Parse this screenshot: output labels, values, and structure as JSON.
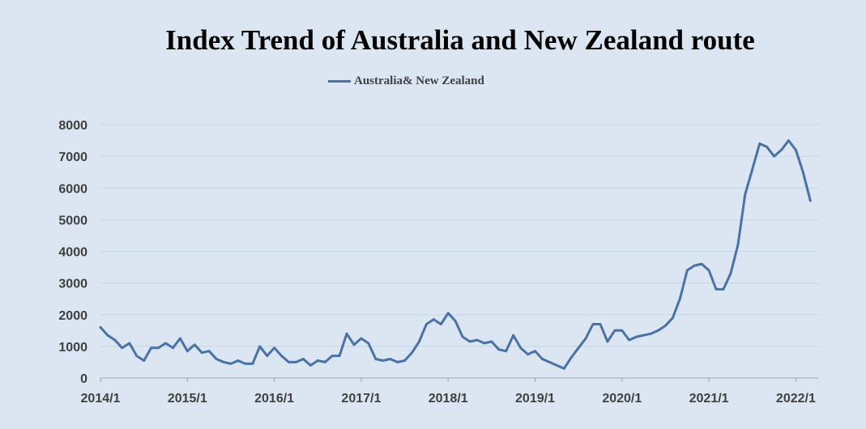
{
  "chart_data": {
    "type": "line",
    "title": "Index Trend of Australia and New Zealand route",
    "xlabel": "",
    "ylabel": "",
    "ylim": [
      0,
      8000
    ],
    "yticks": [
      0,
      1000,
      2000,
      3000,
      4000,
      5000,
      6000,
      7000,
      8000
    ],
    "xticks": [
      "2014/1",
      "2015/1",
      "2016/1",
      "2017/1",
      "2018/1",
      "2019/1",
      "2020/1",
      "2021/1",
      "2022/1"
    ],
    "grid": true,
    "legend_position": "top-center",
    "series_color": "#4a72a6",
    "series": [
      {
        "name": "Australia& New Zealand",
        "points": [
          [
            "2014/1",
            1600
          ],
          [
            "2014/2",
            1350
          ],
          [
            "2014/3",
            1200
          ],
          [
            "2014/4",
            950
          ],
          [
            "2014/5",
            1100
          ],
          [
            "2014/6",
            700
          ],
          [
            "2014/7",
            550
          ],
          [
            "2014/8",
            950
          ],
          [
            "2014/9",
            950
          ],
          [
            "2014/10",
            1100
          ],
          [
            "2014/11",
            950
          ],
          [
            "2014/12",
            1250
          ],
          [
            "2015/1",
            850
          ],
          [
            "2015/2",
            1050
          ],
          [
            "2015/3",
            800
          ],
          [
            "2015/4",
            850
          ],
          [
            "2015/5",
            600
          ],
          [
            "2015/6",
            500
          ],
          [
            "2015/7",
            450
          ],
          [
            "2015/8",
            550
          ],
          [
            "2015/9",
            450
          ],
          [
            "2015/10",
            450
          ],
          [
            "2015/11",
            1000
          ],
          [
            "2015/12",
            700
          ],
          [
            "2016/1",
            950
          ],
          [
            "2016/2",
            700
          ],
          [
            "2016/3",
            500
          ],
          [
            "2016/4",
            500
          ],
          [
            "2016/5",
            600
          ],
          [
            "2016/6",
            400
          ],
          [
            "2016/7",
            550
          ],
          [
            "2016/8",
            500
          ],
          [
            "2016/9",
            700
          ],
          [
            "2016/10",
            700
          ],
          [
            "2016/11",
            1400
          ],
          [
            "2016/12",
            1050
          ],
          [
            "2017/1",
            1250
          ],
          [
            "2017/2",
            1100
          ],
          [
            "2017/3",
            600
          ],
          [
            "2017/4",
            550
          ],
          [
            "2017/5",
            600
          ],
          [
            "2017/6",
            500
          ],
          [
            "2017/7",
            550
          ],
          [
            "2017/8",
            800
          ],
          [
            "2017/9",
            1150
          ],
          [
            "2017/10",
            1700
          ],
          [
            "2017/11",
            1850
          ],
          [
            "2017/12",
            1700
          ],
          [
            "2018/1",
            2050
          ],
          [
            "2018/2",
            1800
          ],
          [
            "2018/3",
            1300
          ],
          [
            "2018/4",
            1150
          ],
          [
            "2018/5",
            1200
          ],
          [
            "2018/6",
            1100
          ],
          [
            "2018/7",
            1150
          ],
          [
            "2018/8",
            900
          ],
          [
            "2018/9",
            850
          ],
          [
            "2018/10",
            1350
          ],
          [
            "2018/11",
            950
          ],
          [
            "2018/12",
            750
          ],
          [
            "2019/1",
            850
          ],
          [
            "2019/2",
            600
          ],
          [
            "2019/3",
            500
          ],
          [
            "2019/4",
            400
          ],
          [
            "2019/5",
            300
          ],
          [
            "2019/6",
            650
          ],
          [
            "2019/7",
            950
          ],
          [
            "2019/8",
            1250
          ],
          [
            "2019/9",
            1700
          ],
          [
            "2019/10",
            1700
          ],
          [
            "2019/11",
            1150
          ],
          [
            "2019/12",
            1500
          ],
          [
            "2020/1",
            1500
          ],
          [
            "2020/2",
            1200
          ],
          [
            "2020/3",
            1300
          ],
          [
            "2020/4",
            1350
          ],
          [
            "2020/5",
            1400
          ],
          [
            "2020/6",
            1500
          ],
          [
            "2020/7",
            1650
          ],
          [
            "2020/8",
            1900
          ],
          [
            "2020/9",
            2500
          ],
          [
            "2020/10",
            3400
          ],
          [
            "2020/11",
            3550
          ],
          [
            "2020/12",
            3600
          ],
          [
            "2021/1",
            3400
          ],
          [
            "2021/2",
            2800
          ],
          [
            "2021/3",
            2800
          ],
          [
            "2021/4",
            3300
          ],
          [
            "2021/5",
            4200
          ],
          [
            "2021/6",
            5800
          ],
          [
            "2021/7",
            6600
          ],
          [
            "2021/8",
            7400
          ],
          [
            "2021/9",
            7300
          ],
          [
            "2021/10",
            7000
          ],
          [
            "2021/11",
            7200
          ],
          [
            "2021/12",
            7500
          ],
          [
            "2022/1",
            7200
          ],
          [
            "2022/2",
            6500
          ],
          [
            "2022/3",
            5600
          ]
        ]
      }
    ]
  }
}
